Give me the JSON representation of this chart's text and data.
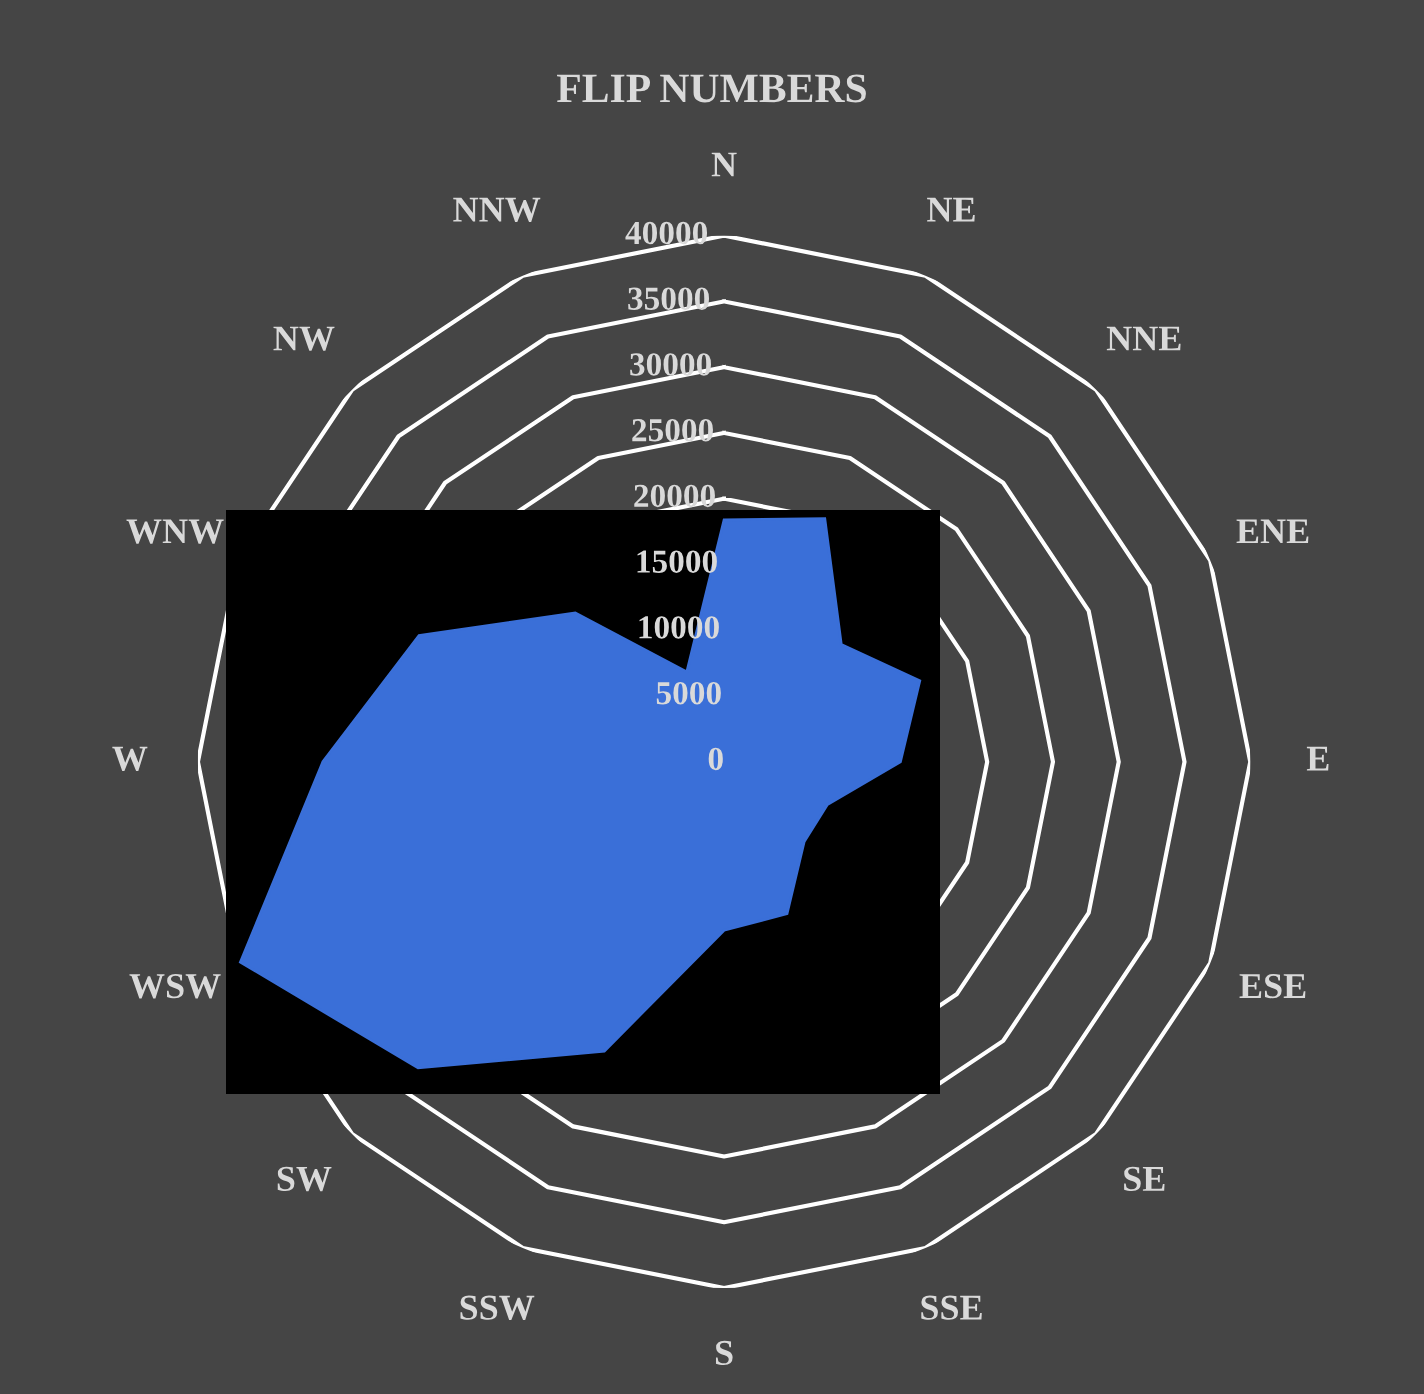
{
  "chart_data": {
    "type": "radar",
    "title": "FLIP NUMBERS",
    "categories": [
      "N",
      "NE",
      "NNE",
      "ENE",
      "E",
      "ESE",
      "SE",
      "SSE",
      "S",
      "SSW",
      "SW",
      "WSW",
      "W",
      "WNW",
      "NW",
      "NNW"
    ],
    "series": [
      {
        "color": "#3a6fd8",
        "values": [
          18400,
          20000,
          12600,
          16100,
          13400,
          8500,
          8600,
          12500,
          12800,
          23800,
          32900,
          39800,
          30500,
          25100,
          16000,
          7400
        ]
      }
    ],
    "ylim": [
      0,
      40000
    ],
    "yticks": [
      0,
      5000,
      10000,
      15000,
      20000,
      25000,
      30000,
      35000,
      40000
    ],
    "grid": true
  }
}
